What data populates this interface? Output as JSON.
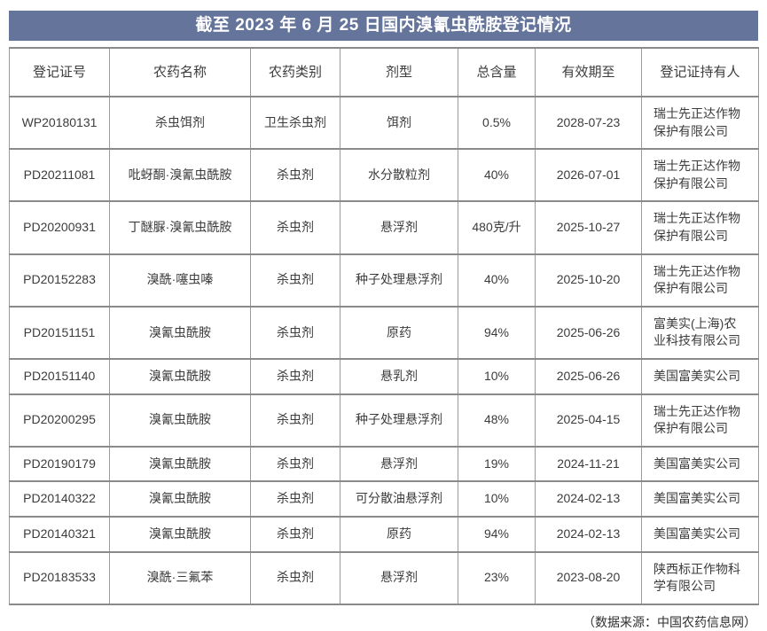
{
  "title": "截至 2023 年 6 月 25 日国内溴氰虫酰胺登记情况",
  "table": {
    "headers": [
      "登记证号",
      "农药名称",
      "农药类别",
      "剂型",
      "总含量",
      "有效期至",
      "登记证持有人"
    ],
    "rows": [
      [
        "WP20180131",
        "杀虫饵剂",
        "卫生杀虫剂",
        "饵剂",
        "0.5%",
        "2028-07-23",
        "瑞士先正达作物保护有限公司"
      ],
      [
        "PD20211081",
        "吡蚜酮·溴氰虫酰胺",
        "杀虫剂",
        "水分散粒剂",
        "40%",
        "2026-07-01",
        "瑞士先正达作物保护有限公司"
      ],
      [
        "PD20200931",
        "丁醚脲·溴氰虫酰胺",
        "杀虫剂",
        "悬浮剂",
        "480克/升",
        "2025-10-27",
        "瑞士先正达作物保护有限公司"
      ],
      [
        "PD20152283",
        "溴酰·噻虫嗪",
        "杀虫剂",
        "种子处理悬浮剂",
        "40%",
        "2025-10-20",
        "瑞士先正达作物保护有限公司"
      ],
      [
        "PD20151151",
        "溴氰虫酰胺",
        "杀虫剂",
        "原药",
        "94%",
        "2025-06-26",
        "富美实(上海)农业科技有限公司"
      ],
      [
        "PD20151140",
        "溴氰虫酰胺",
        "杀虫剂",
        "悬乳剂",
        "10%",
        "2025-06-26",
        "美国富美实公司"
      ],
      [
        "PD20200295",
        "溴氰虫酰胺",
        "杀虫剂",
        "种子处理悬浮剂",
        "48%",
        "2025-04-15",
        "瑞士先正达作物保护有限公司"
      ],
      [
        "PD20190179",
        "溴氰虫酰胺",
        "杀虫剂",
        "悬浮剂",
        "19%",
        "2024-11-21",
        "美国富美实公司"
      ],
      [
        "PD20140322",
        "溴氰虫酰胺",
        "杀虫剂",
        "可分散油悬浮剂",
        "10%",
        "2024-02-13",
        "美国富美实公司"
      ],
      [
        "PD20140321",
        "溴氰虫酰胺",
        "杀虫剂",
        "原药",
        "94%",
        "2024-02-13",
        "美国富美实公司"
      ],
      [
        "PD20183533",
        "溴酰·三氟苯",
        "杀虫剂",
        "悬浮剂",
        "23%",
        "2023-08-20",
        "陕西标正作物科学有限公司"
      ]
    ]
  },
  "footer": {
    "source_note": "（数据来源：中国农药信息网）"
  },
  "colors": {
    "title_bg": "#64749a",
    "border_heavy": "#8a8a8a",
    "border_light": "#9b9b9b",
    "text": "#3c3c3c"
  }
}
